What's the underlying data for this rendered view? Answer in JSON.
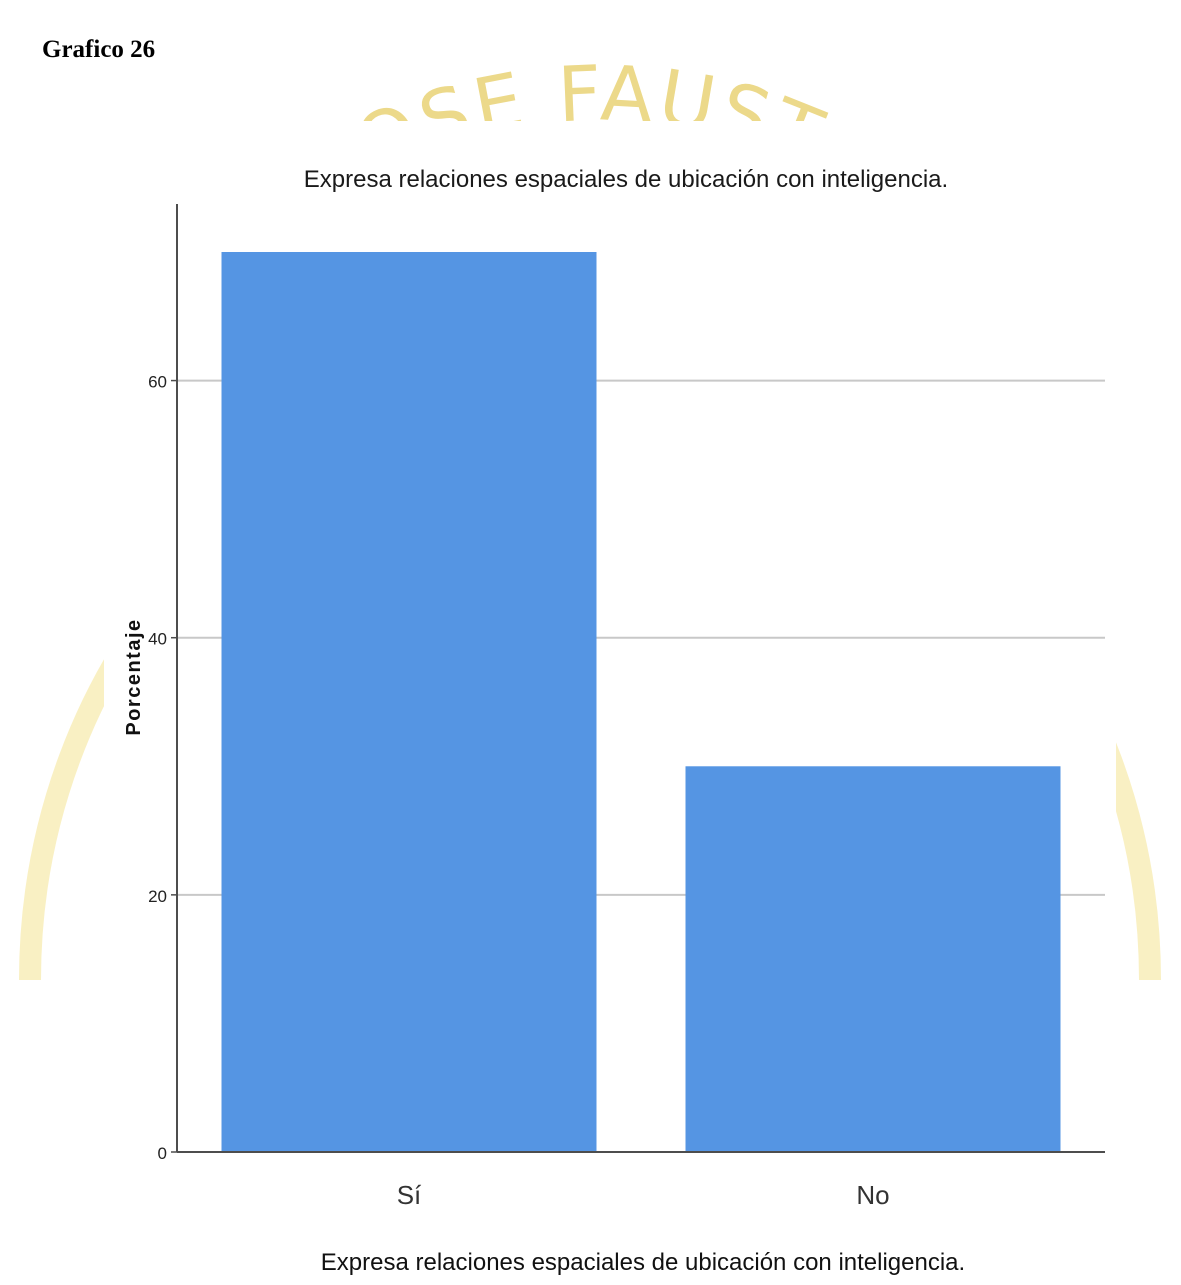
{
  "document": {
    "heading": "Grafico 26"
  },
  "watermark": {
    "text": "JOSE FAUST",
    "color": "#f6e9a6"
  },
  "chart_data": {
    "type": "bar",
    "title": "Expresa relaciones espaciales de ubicación con inteligencia.",
    "xlabel": "Expresa relaciones espaciales de ubicación con inteligencia.",
    "ylabel": "Porcentaje",
    "categories": [
      "Sí",
      "No"
    ],
    "values": [
      70,
      30
    ],
    "ylim": [
      0,
      70
    ],
    "yticks": [
      0,
      20,
      40,
      60
    ],
    "grid": true,
    "bar_color": "#5595e3",
    "grid_color": "#c8c8c8",
    "axis_color": "#4d4d4d"
  }
}
